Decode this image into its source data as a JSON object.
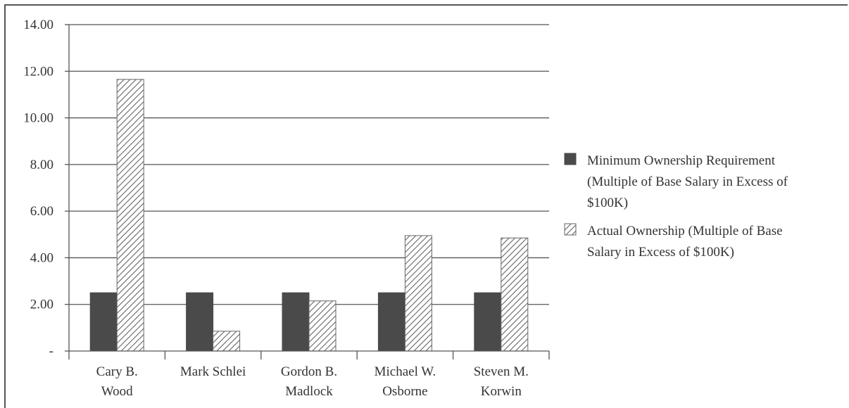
{
  "chart_data": {
    "type": "bar",
    "title": "",
    "xlabel": "",
    "ylabel": "",
    "ylim": [
      0,
      14
    ],
    "yticks": [
      0,
      2,
      4,
      6,
      8,
      10,
      12,
      14
    ],
    "ytick_labels": [
      "-",
      "2.00",
      "4.00",
      "6.00",
      "8.00",
      "10.00",
      "12.00",
      "14.00"
    ],
    "grid": true,
    "legend_position": "right",
    "categories": [
      [
        "Cary B.",
        "Wood"
      ],
      [
        "Mark Schlei"
      ],
      [
        "Gordon B.",
        "Madlock"
      ],
      [
        "Michael W.",
        "Osborne"
      ],
      [
        "Steven M.",
        "Korwin"
      ]
    ],
    "series": [
      {
        "name": [
          "Minimum Ownership Requirement",
          "(Multiple of Base Salary in Excess of",
          "$100K)"
        ],
        "values": [
          2.5,
          2.5,
          2.5,
          2.5,
          2.5
        ],
        "color": "#4a4a4a",
        "pattern": "solid"
      },
      {
        "name": [
          "Actual Ownership (Multiple of Base",
          "Salary in Excess of $100K)"
        ],
        "values": [
          11.65,
          0.85,
          2.15,
          4.95,
          4.85
        ],
        "color": "#ffffff",
        "pattern": "diagonal-hatch"
      }
    ]
  }
}
